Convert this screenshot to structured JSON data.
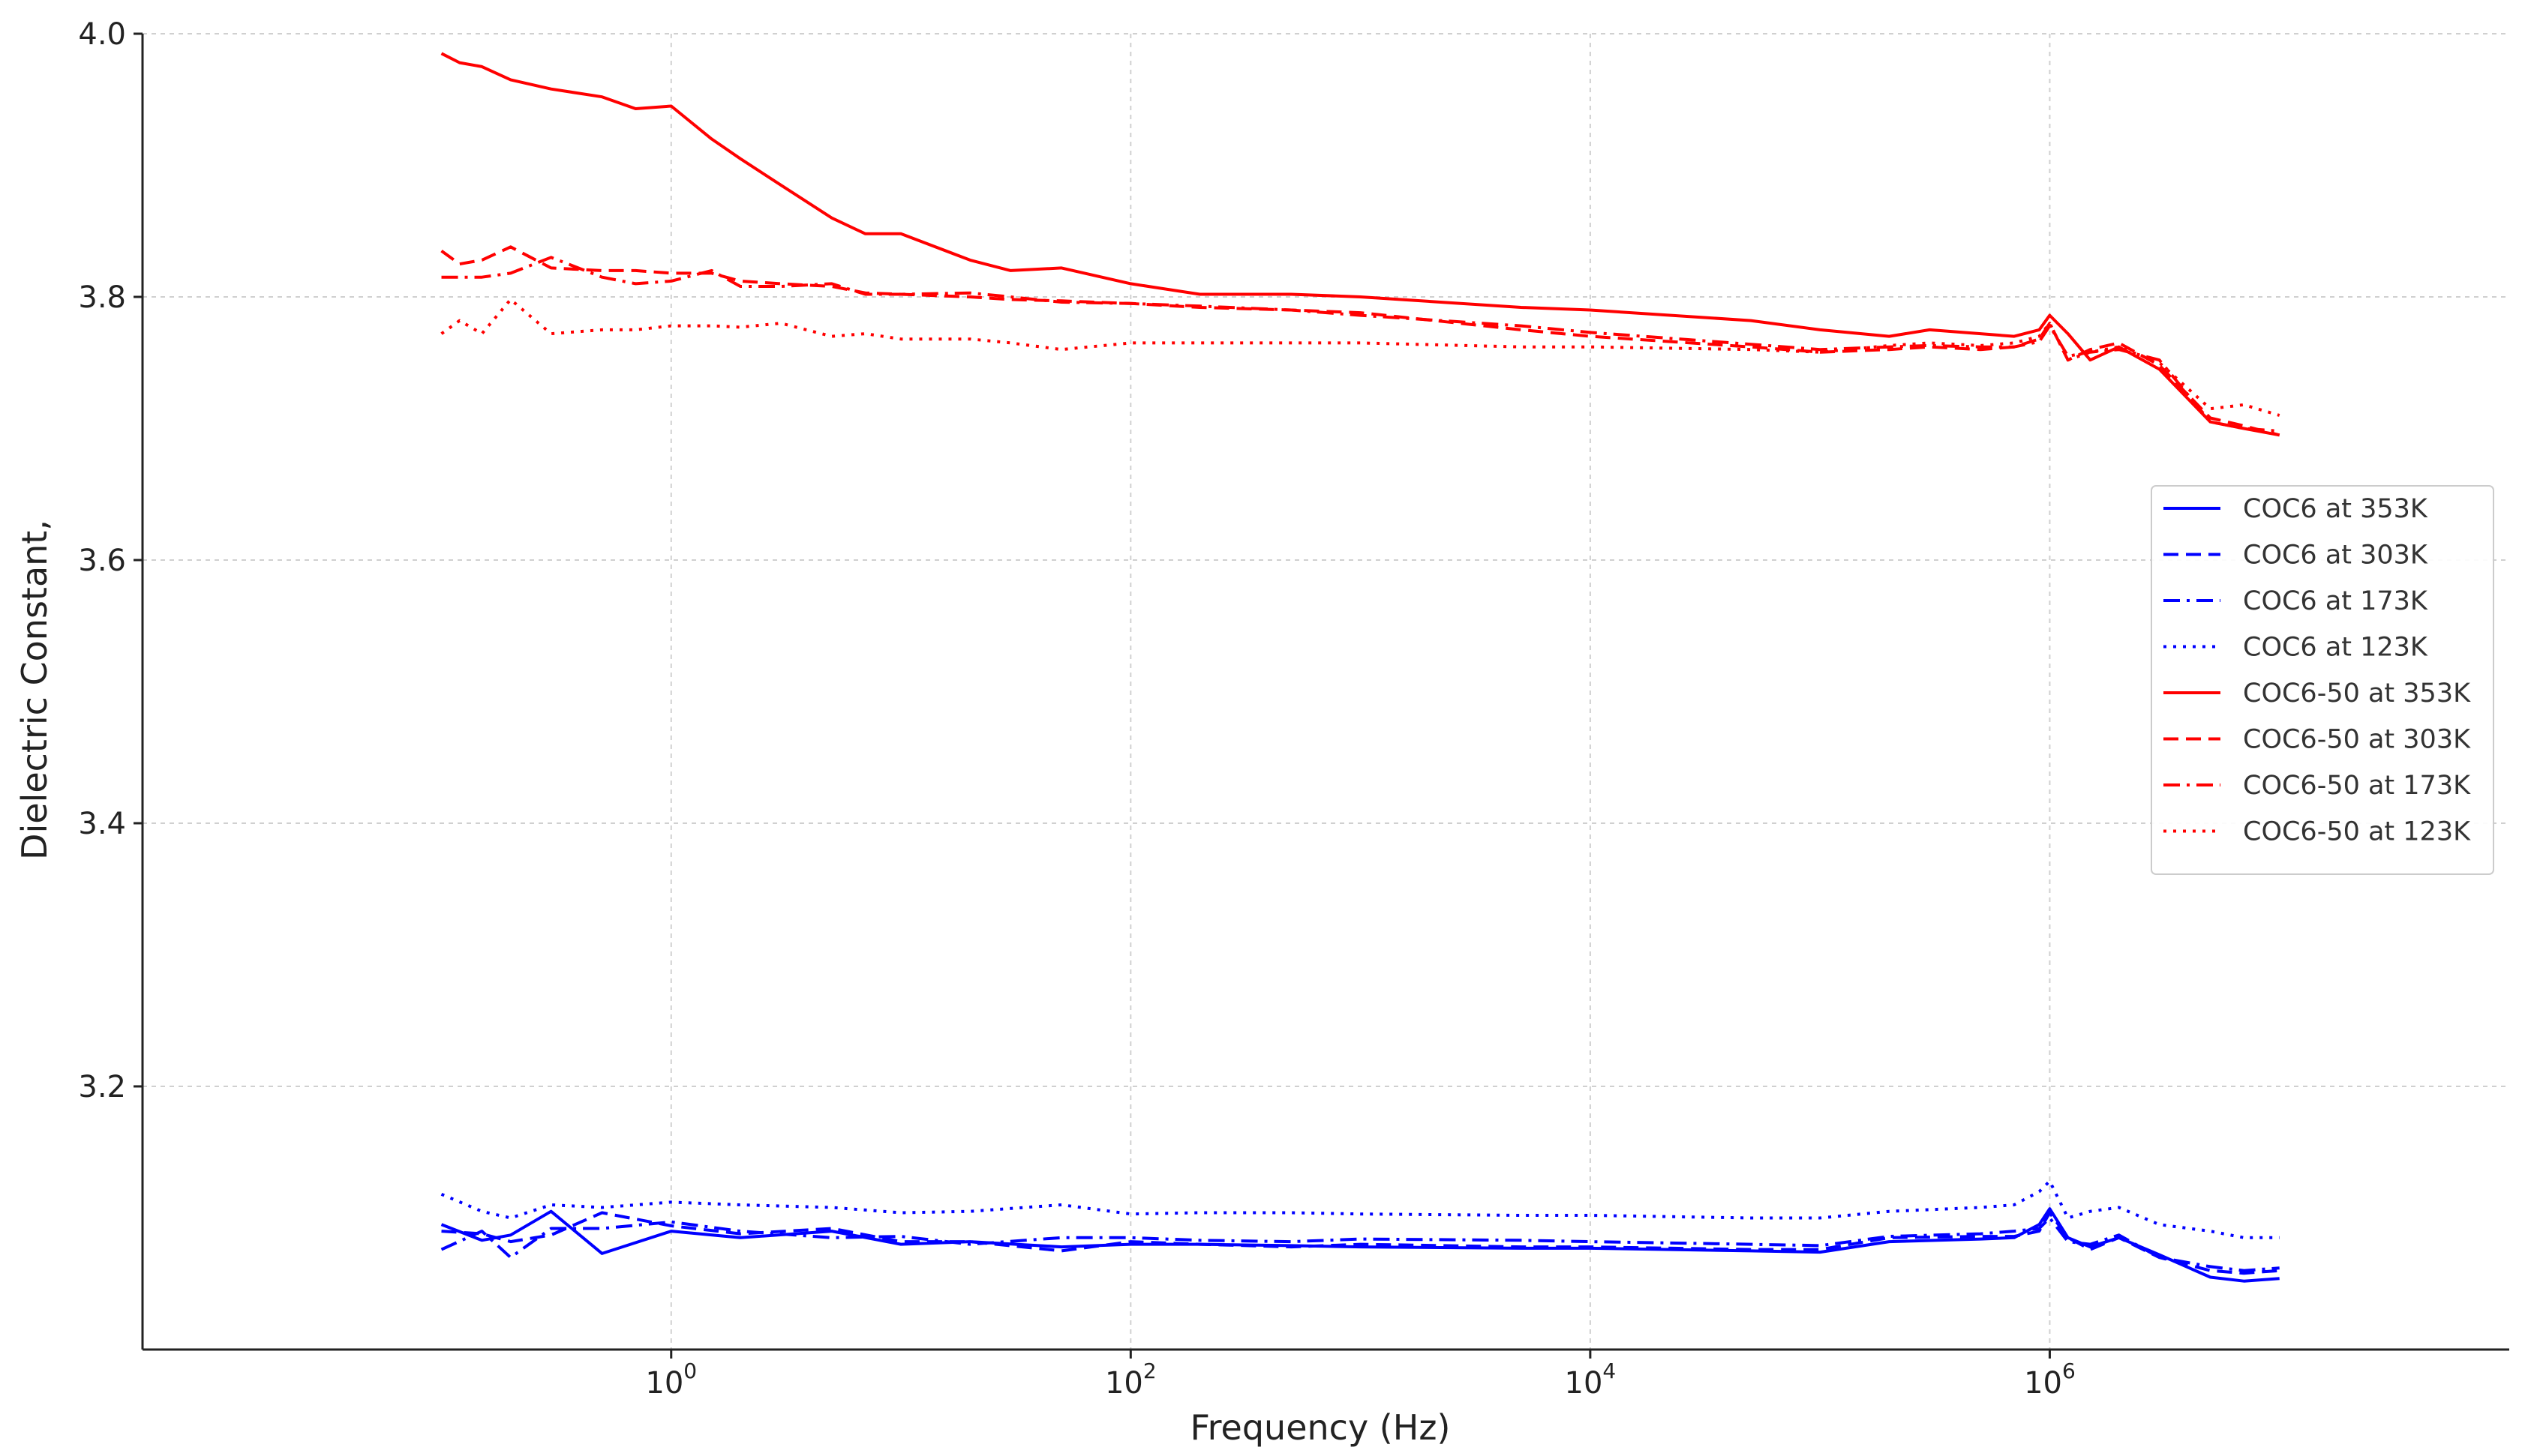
{
  "chart_data": {
    "type": "line",
    "title": "",
    "xlabel": "Frequency (Hz)",
    "ylabel": "Dielectric Constant,",
    "xscale": "log",
    "xlim": [
      0.005,
      100000000
    ],
    "ylim": [
      3.0,
      4.0
    ],
    "grid": true,
    "legend_position": "center-right",
    "x_ticks": [
      {
        "value": 1,
        "base": "10",
        "exp": "0"
      },
      {
        "value": 100,
        "base": "10",
        "exp": "2"
      },
      {
        "value": 10000,
        "base": "10",
        "exp": "4"
      },
      {
        "value": 1000000,
        "base": "10",
        "exp": "6"
      }
    ],
    "y_ticks": [
      {
        "value": 3.2,
        "label": "3.2"
      },
      {
        "value": 3.4,
        "label": "3.4"
      },
      {
        "value": 3.6,
        "label": "3.6"
      },
      {
        "value": 3.8,
        "label": "3.8"
      },
      {
        "value": 4.0,
        "label": "4.0"
      }
    ],
    "series": [
      {
        "name": "COC6 at 353K",
        "color": "#0000ff",
        "dash": "solid",
        "x": [
          0.1,
          0.15,
          0.2,
          0.3,
          0.5,
          1,
          2,
          5,
          10,
          20,
          50,
          100,
          200,
          500,
          1000,
          5000,
          10000,
          50000,
          100000,
          200000,
          500000,
          700000,
          900000,
          1000000,
          1200000,
          1500000,
          2000000,
          3000000,
          5000000,
          7000000,
          10000000
        ],
        "y": [
          3.095,
          3.083,
          3.087,
          3.105,
          3.073,
          3.09,
          3.085,
          3.09,
          3.08,
          3.082,
          3.078,
          3.08,
          3.08,
          3.079,
          3.078,
          3.077,
          3.077,
          3.075,
          3.074,
          3.082,
          3.084,
          3.085,
          3.095,
          3.107,
          3.085,
          3.078,
          3.085,
          3.072,
          3.055,
          3.052,
          3.054
        ]
      },
      {
        "name": "COC6 at 303K",
        "color": "#0000ff",
        "dash": "dashed",
        "x": [
          0.1,
          0.15,
          0.2,
          0.3,
          0.5,
          1,
          2,
          5,
          10,
          20,
          50,
          100,
          200,
          500,
          1000,
          5000,
          10000,
          50000,
          100000,
          200000,
          500000,
          700000,
          900000,
          1000000,
          1200000,
          1500000,
          2000000,
          3000000,
          5000000,
          7000000,
          10000000
        ],
        "y": [
          3.09,
          3.088,
          3.082,
          3.087,
          3.104,
          3.094,
          3.088,
          3.092,
          3.082,
          3.082,
          3.075,
          3.082,
          3.08,
          3.078,
          3.08,
          3.078,
          3.078,
          3.076,
          3.076,
          3.085,
          3.086,
          3.086,
          3.09,
          3.104,
          3.085,
          3.076,
          3.085,
          3.07,
          3.06,
          3.058,
          3.06
        ]
      },
      {
        "name": "COC6 at 173K",
        "color": "#0000ff",
        "dash": "dashdot",
        "x": [
          0.1,
          0.15,
          0.2,
          0.3,
          0.5,
          1,
          2,
          5,
          10,
          20,
          50,
          100,
          200,
          500,
          1000,
          5000,
          10000,
          50000,
          100000,
          200000,
          500000,
          700000,
          900000,
          1000000,
          1200000,
          1500000,
          2000000,
          3000000,
          5000000,
          7000000,
          10000000
        ],
        "y": [
          3.076,
          3.09,
          3.07,
          3.092,
          3.092,
          3.097,
          3.09,
          3.085,
          3.086,
          3.08,
          3.085,
          3.085,
          3.083,
          3.082,
          3.084,
          3.083,
          3.082,
          3.08,
          3.079,
          3.086,
          3.088,
          3.09,
          3.092,
          3.1,
          3.082,
          3.08,
          3.087,
          3.07,
          3.063,
          3.06,
          3.062
        ]
      },
      {
        "name": "COC6 at 123K",
        "color": "#0000ff",
        "dash": "dotted",
        "x": [
          0.1,
          0.15,
          0.2,
          0.3,
          0.5,
          1,
          2,
          5,
          10,
          20,
          50,
          100,
          200,
          500,
          1000,
          5000,
          10000,
          50000,
          100000,
          200000,
          500000,
          700000,
          900000,
          1000000,
          1200000,
          1500000,
          2000000,
          3000000,
          5000000,
          7000000,
          10000000
        ],
        "y": [
          3.118,
          3.105,
          3.1,
          3.11,
          3.108,
          3.112,
          3.11,
          3.108,
          3.104,
          3.105,
          3.11,
          3.103,
          3.104,
          3.104,
          3.103,
          3.102,
          3.102,
          3.1,
          3.1,
          3.105,
          3.108,
          3.11,
          3.12,
          3.128,
          3.1,
          3.105,
          3.108,
          3.095,
          3.09,
          3.085,
          3.085
        ]
      },
      {
        "name": "COC6-50 at 353K",
        "color": "#ff0000",
        "dash": "solid",
        "x": [
          0.1,
          0.12,
          0.15,
          0.2,
          0.3,
          0.5,
          0.7,
          1,
          1.5,
          2,
          3,
          5,
          7,
          10,
          20,
          30,
          50,
          100,
          200,
          500,
          1000,
          5000,
          10000,
          50000,
          100000,
          200000,
          300000,
          500000,
          700000,
          900000,
          1000000,
          1200000,
          1500000,
          2000000,
          3000000,
          5000000,
          7000000,
          10000000
        ],
        "y": [
          3.985,
          3.978,
          3.975,
          3.965,
          3.958,
          3.952,
          3.943,
          3.945,
          3.92,
          3.905,
          3.885,
          3.86,
          3.848,
          3.848,
          3.828,
          3.82,
          3.822,
          3.81,
          3.802,
          3.802,
          3.8,
          3.792,
          3.79,
          3.782,
          3.775,
          3.77,
          3.775,
          3.772,
          3.77,
          3.775,
          3.786,
          3.772,
          3.752,
          3.762,
          3.745,
          3.705,
          3.7,
          3.695
        ]
      },
      {
        "name": "COC6-50 at 303K",
        "color": "#ff0000",
        "dash": "dashed",
        "x": [
          0.1,
          0.12,
          0.15,
          0.2,
          0.3,
          0.5,
          0.7,
          1,
          1.5,
          2,
          3,
          5,
          7,
          10,
          20,
          30,
          50,
          100,
          200,
          500,
          1000,
          5000,
          10000,
          50000,
          100000,
          200000,
          300000,
          500000,
          700000,
          900000,
          1000000,
          1200000,
          1500000,
          2000000,
          3000000,
          5000000,
          7000000,
          10000000
        ],
        "y": [
          3.835,
          3.825,
          3.828,
          3.838,
          3.822,
          3.82,
          3.82,
          3.818,
          3.818,
          3.812,
          3.81,
          3.808,
          3.803,
          3.802,
          3.8,
          3.798,
          3.797,
          3.795,
          3.792,
          3.79,
          3.788,
          3.775,
          3.77,
          3.762,
          3.758,
          3.76,
          3.762,
          3.76,
          3.762,
          3.768,
          3.78,
          3.752,
          3.76,
          3.765,
          3.748,
          3.708,
          3.702,
          3.695
        ]
      },
      {
        "name": "COC6-50 at 173K",
        "color": "#ff0000",
        "dash": "dashdot",
        "x": [
          0.1,
          0.12,
          0.15,
          0.2,
          0.3,
          0.5,
          0.7,
          1,
          1.5,
          2,
          3,
          5,
          7,
          10,
          20,
          30,
          50,
          100,
          200,
          500,
          1000,
          5000,
          10000,
          50000,
          100000,
          200000,
          300000,
          500000,
          700000,
          900000,
          1000000,
          1200000,
          1500000,
          2000000,
          3000000,
          5000000,
          7000000,
          10000000
        ],
        "y": [
          3.815,
          3.815,
          3.815,
          3.818,
          3.83,
          3.815,
          3.81,
          3.812,
          3.82,
          3.808,
          3.808,
          3.81,
          3.802,
          3.802,
          3.803,
          3.8,
          3.796,
          3.795,
          3.793,
          3.79,
          3.786,
          3.778,
          3.773,
          3.764,
          3.76,
          3.762,
          3.763,
          3.762,
          3.762,
          3.766,
          3.778,
          3.755,
          3.758,
          3.76,
          3.752,
          3.705,
          3.7,
          3.698
        ]
      },
      {
        "name": "COC6-50 at 123K",
        "color": "#ff0000",
        "dash": "dotted",
        "x": [
          0.1,
          0.12,
          0.15,
          0.2,
          0.3,
          0.5,
          0.7,
          1,
          1.5,
          2,
          3,
          5,
          7,
          10,
          20,
          30,
          50,
          100,
          200,
          500,
          1000,
          5000,
          10000,
          50000,
          100000,
          200000,
          300000,
          500000,
          700000,
          900000,
          1000000,
          1200000,
          1500000,
          2000000,
          3000000,
          5000000,
          7000000,
          10000000
        ],
        "y": [
          3.772,
          3.782,
          3.772,
          3.798,
          3.772,
          3.775,
          3.775,
          3.778,
          3.778,
          3.777,
          3.78,
          3.77,
          3.772,
          3.768,
          3.768,
          3.765,
          3.76,
          3.765,
          3.765,
          3.765,
          3.765,
          3.762,
          3.762,
          3.76,
          3.758,
          3.763,
          3.765,
          3.763,
          3.765,
          3.77,
          3.78,
          3.752,
          3.758,
          3.762,
          3.75,
          3.715,
          3.718,
          3.71
        ]
      }
    ]
  }
}
